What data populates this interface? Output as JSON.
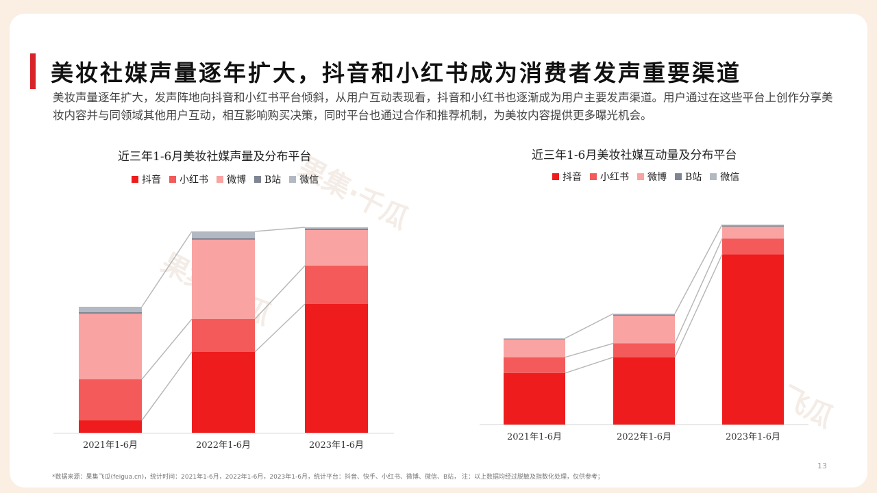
{
  "page": {
    "title": "美妆社媒声量逐年扩大，抖音和小红书成为消费者发声重要渠道",
    "description": "美妆声量逐年扩大，发声阵地向抖音和小红书平台倾斜，从用户互动表现看，抖音和小红书也逐渐成为用户主要发声渠道。用户通过在这些平台上创作分享美妆内容并与同领域其他用户互动，相互影响购买决策，同时平台也通过合作和推荐机制，为美妆内容提供更多曝光机会。",
    "footnote": "*数据来源：果集飞瓜(feigua.cn)，统计时间：2021年1-6月，2022年1-6月，2023年1-6月，统计平台：抖音、快手、小红书、微博、微信、B站， 注：以上数据均经过脱敏及指数化处理，仅供参考；",
    "page_number": "13",
    "watermarks": [
      "果集·千瓜",
      "果集·西瓜",
      "果集·飞瓜"
    ]
  },
  "legend": [
    {
      "name": "抖音",
      "color": "#ee1c1c"
    },
    {
      "name": "小红书",
      "color": "#f45a5a"
    },
    {
      "name": "微博",
      "color": "#f9a3a3"
    },
    {
      "name": "B站",
      "color": "#7f8592"
    },
    {
      "name": "微信",
      "color": "#b3b9c2"
    }
  ],
  "chart_data": [
    {
      "type": "bar",
      "stacked": true,
      "title": "近三年1-6月美妆社媒声量及分布平台",
      "categories": [
        "2021年1-6月",
        "2022年1-6月",
        "2023年1-6月"
      ],
      "series": [
        {
          "name": "抖音",
          "values": [
            9,
            59,
            94
          ]
        },
        {
          "name": "小红书",
          "values": [
            30,
            24,
            28
          ]
        },
        {
          "name": "微博",
          "values": [
            48,
            58,
            26
          ]
        },
        {
          "name": "B站",
          "values": [
            1,
            1,
            1
          ]
        },
        {
          "name": "微信",
          "values": [
            4,
            5,
            1
          ]
        }
      ],
      "ylim": [
        0,
        160
      ],
      "grid": false,
      "legend_position": "top"
    },
    {
      "type": "bar",
      "stacked": true,
      "title": "近三年1-6月美妆社媒互动量及分布平台",
      "categories": [
        "2021年1-6月",
        "2022年1-6月",
        "2023年1-6月"
      ],
      "series": [
        {
          "name": "抖音",
          "values": [
            26,
            34,
            86
          ]
        },
        {
          "name": "小红书",
          "values": [
            8,
            7,
            8
          ]
        },
        {
          "name": "微博",
          "values": [
            9,
            14,
            6
          ]
        },
        {
          "name": "B站",
          "values": [
            0.3,
            0.5,
            0.5
          ]
        },
        {
          "name": "微信",
          "values": [
            0.3,
            0.5,
            0.5
          ]
        }
      ],
      "ylim": [
        0,
        110
      ],
      "grid": false,
      "legend_position": "top"
    }
  ]
}
